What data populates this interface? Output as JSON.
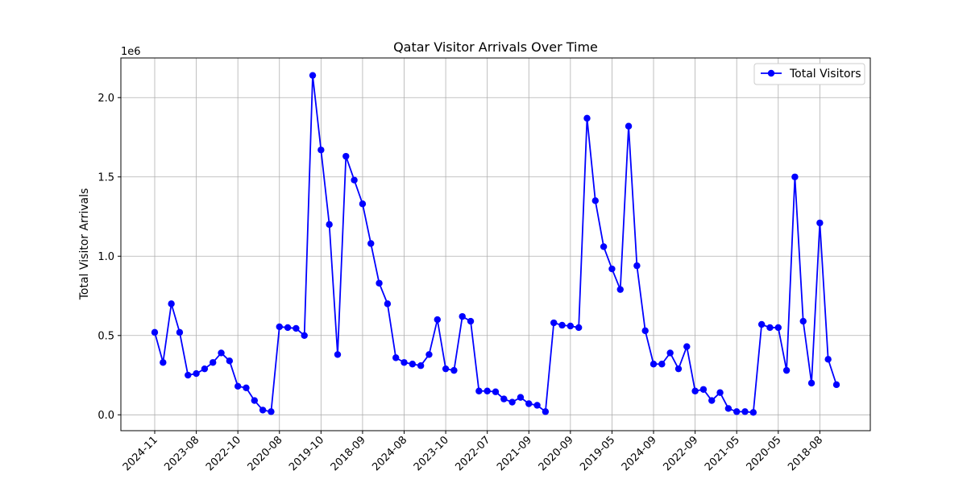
{
  "chart_data": {
    "type": "line",
    "title": "Qatar Visitor Arrivals Over Time",
    "xlabel": "",
    "ylabel": "Total Visitor Arrivals",
    "y_offset_text": "1e6",
    "ylim": [
      -0.1,
      2.25
    ],
    "y_scale_note": "values in millions (×1e6)",
    "y_ticks": [
      0.0,
      0.5,
      1.0,
      1.5,
      2.0
    ],
    "y_tick_labels": [
      "0.0",
      "0.5",
      "1.0",
      "1.5",
      "2.0"
    ],
    "x_tick_labels": [
      "2024-11",
      "2023-08",
      "2022-10",
      "2020-08",
      "2019-10",
      "2018-09",
      "2024-08",
      "2023-10",
      "2022-07",
      "2021-09",
      "2020-09",
      "2019-05",
      "2024-09",
      "2022-09",
      "2021-05",
      "2020-05",
      "2018-08"
    ],
    "x_tick_every": 5,
    "grid": true,
    "legend_position": "top-right",
    "series": [
      {
        "name": "Total Visitors",
        "color": "#0000ff",
        "marker": "circle",
        "values": [
          0.52,
          0.33,
          0.7,
          0.52,
          0.25,
          0.26,
          0.29,
          0.33,
          0.39,
          0.34,
          0.18,
          0.17,
          0.09,
          0.03,
          0.02,
          0.555,
          0.55,
          0.545,
          0.5,
          2.14,
          1.67,
          1.2,
          0.38,
          1.63,
          1.48,
          1.33,
          1.08,
          0.83,
          0.7,
          0.36,
          0.33,
          0.32,
          0.31,
          0.38,
          0.6,
          0.29,
          0.28,
          0.62,
          0.59,
          0.15,
          0.15,
          0.145,
          0.1,
          0.08,
          0.11,
          0.07,
          0.06,
          0.02,
          0.58,
          0.565,
          0.56,
          0.55,
          1.87,
          1.35,
          1.06,
          0.92,
          0.79,
          1.82,
          0.94,
          0.53,
          0.32,
          0.32,
          0.39,
          0.29,
          0.43,
          0.15,
          0.16,
          0.09,
          0.14,
          0.04,
          0.02,
          0.02,
          0.015,
          0.57,
          0.55,
          0.55,
          0.28,
          1.5,
          0.59,
          0.2,
          1.21,
          0.35,
          0.19
        ]
      }
    ]
  }
}
